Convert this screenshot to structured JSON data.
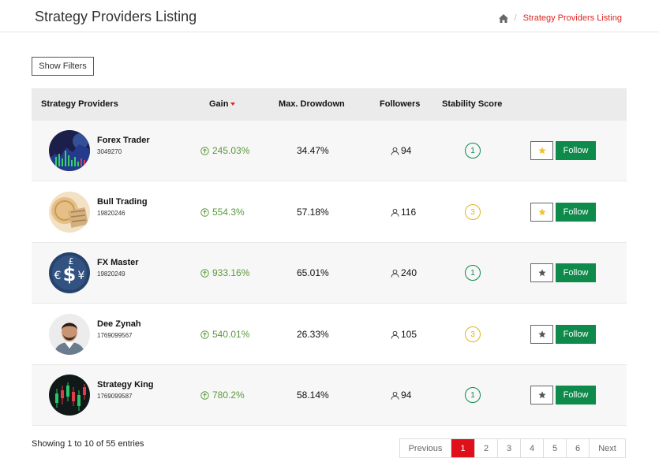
{
  "header": {
    "title": "Strategy Providers Listing",
    "breadcrumb_current": "Strategy Providers Listing",
    "breadcrumb_separator": "/"
  },
  "filters": {
    "show_label": "Show Filters"
  },
  "table": {
    "columns": {
      "provider": "Strategy Providers",
      "gain": "Gain",
      "drawdown": "Max. Drowdown",
      "followers": "Followers",
      "stability": "Stability Score"
    },
    "sort_column": "gain",
    "sort_direction": "desc",
    "follow_label": "Follow",
    "rows": [
      {
        "name": "Forex Trader",
        "id": "3049270",
        "gain": "245.03%",
        "drawdown": "34.47%",
        "followers": "94",
        "score": "1",
        "score_color": "#0e8a4b",
        "starred": true,
        "avatar": "chart-icon"
      },
      {
        "name": "Bull Trading",
        "id": "19820246",
        "gain": "554.3%",
        "drawdown": "57.18%",
        "followers": "116",
        "score": "3",
        "score_color": "#e2b320",
        "starred": true,
        "avatar": "coins-icon"
      },
      {
        "name": "FX Master",
        "id": "19820249",
        "gain": "933.16%",
        "drawdown": "65.01%",
        "followers": "240",
        "score": "1",
        "score_color": "#0e8a4b",
        "starred": false,
        "avatar": "currency-icon"
      },
      {
        "name": "Dee Zynah",
        "id": "1769099567",
        "gain": "540.01%",
        "drawdown": "26.33%",
        "followers": "105",
        "score": "3",
        "score_color": "#e2b320",
        "starred": false,
        "avatar": "person-photo"
      },
      {
        "name": "Strategy King",
        "id": "1769099587",
        "gain": "780.2%",
        "drawdown": "58.14%",
        "followers": "94",
        "score": "1",
        "score_color": "#0e8a4b",
        "starred": false,
        "avatar": "candlestick-icon"
      }
    ]
  },
  "footer": {
    "entries": "Showing 1 to 10 of 55 entries",
    "pagination": [
      "Previous",
      "1",
      "2",
      "3",
      "4",
      "5",
      "6",
      "Next"
    ],
    "active_page": "1"
  },
  "colors": {
    "accent": "#e02424",
    "follow": "#0e8a4b",
    "gain": "#5a9a3b",
    "star_active": "#f2c12e",
    "star_inactive": "#555555"
  }
}
